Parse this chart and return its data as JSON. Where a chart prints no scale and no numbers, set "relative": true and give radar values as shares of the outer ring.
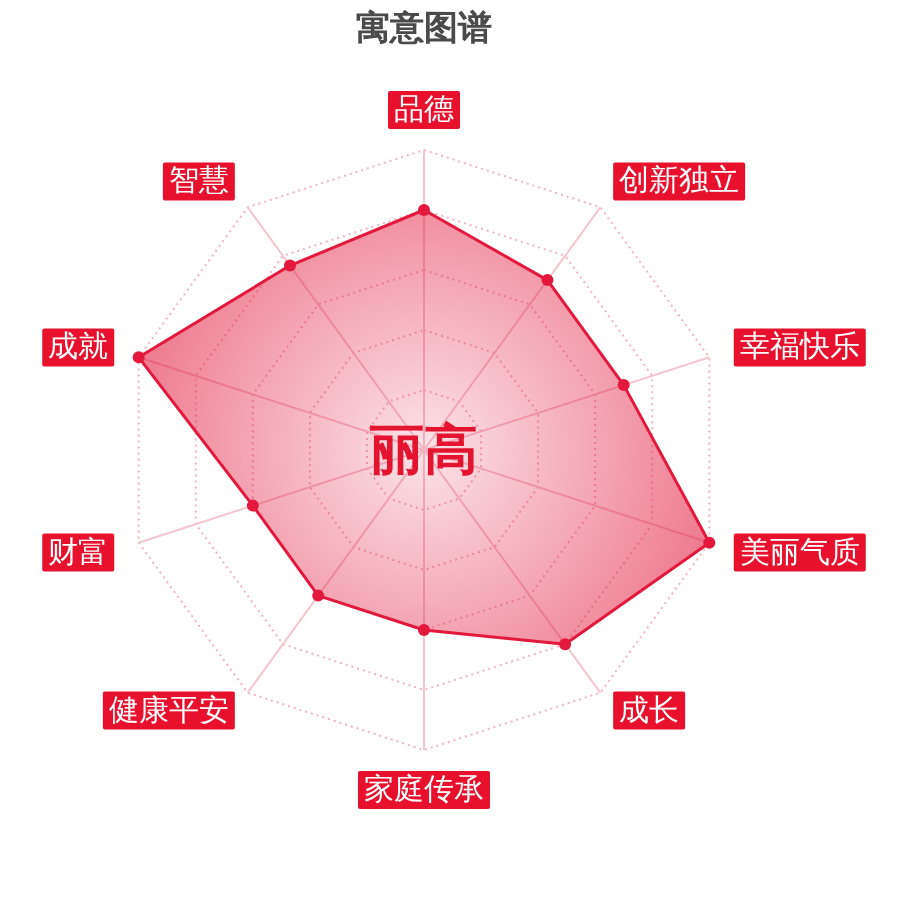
{
  "chart_data": {
    "type": "radar",
    "title": "寓意图谱",
    "categories": [
      "品德",
      "创新独立",
      "幸福快乐",
      "美丽气质",
      "成长",
      "家庭传承",
      "健康平安",
      "财富",
      "成就",
      "智慧"
    ],
    "relative": true,
    "series": [
      {
        "color": "#e2183c",
        "values": [
          0.8,
          0.7,
          0.7,
          1.0,
          0.8,
          0.6,
          0.6,
          0.6,
          1.0,
          0.76
        ]
      }
    ],
    "annotations": [
      "丽高"
    ],
    "grid": true,
    "marker": "circle"
  }
}
